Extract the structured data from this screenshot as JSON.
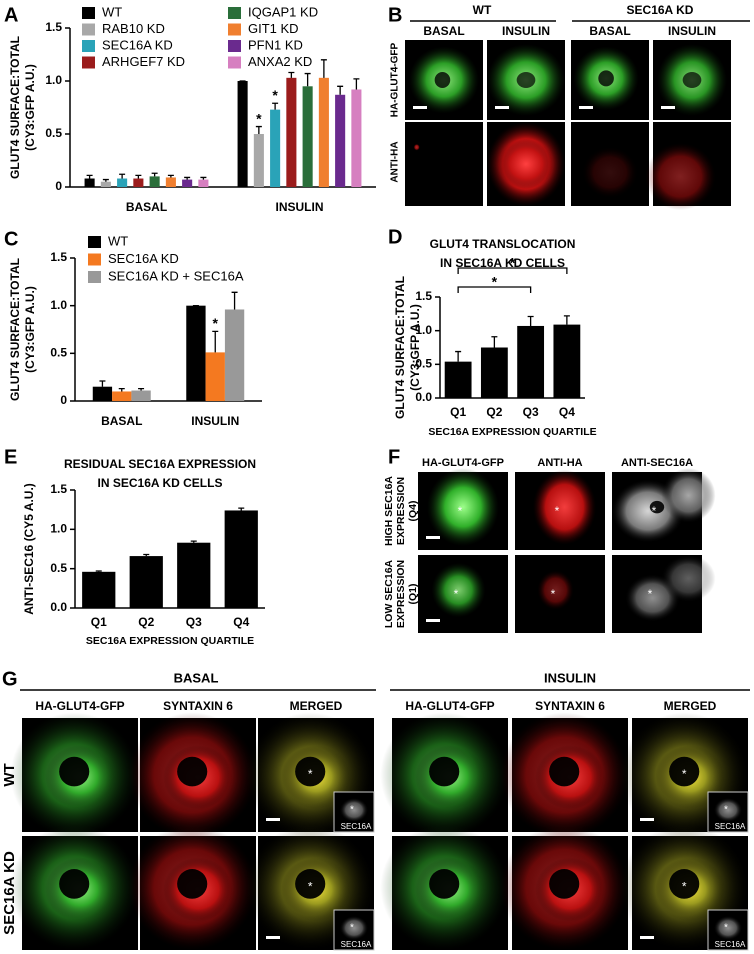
{
  "chart_data": [
    {
      "type": "bar",
      "panel": "A",
      "ylabel": [
        "GLUT4 SURFACE:TOTAL",
        "(CY3:GFP A.U.)"
      ],
      "categories": [
        "BASAL",
        "INSULIN"
      ],
      "series": [
        {
          "name": "WT",
          "color": "#000000",
          "values": [
            0.08,
            1.0
          ],
          "errors": [
            0.03,
            0
          ]
        },
        {
          "name": "RAB10 KD",
          "color": "#a8a8a8",
          "values": [
            0.05,
            0.5
          ],
          "errors": [
            0.02,
            0.07
          ]
        },
        {
          "name": "SEC16A KD",
          "color": "#2aa3b8",
          "values": [
            0.08,
            0.73
          ],
          "errors": [
            0.04,
            0.06
          ]
        },
        {
          "name": "ARHGEF7 KD",
          "color": "#9b1c1c",
          "values": [
            0.08,
            1.03
          ],
          "errors": [
            0.03,
            0.05
          ]
        },
        {
          "name": "IQGAP1 KD",
          "color": "#2a6e3a",
          "values": [
            0.1,
            0.95
          ],
          "errors": [
            0.03,
            0.12
          ]
        },
        {
          "name": "GIT1 KD",
          "color": "#f07f2f",
          "values": [
            0.09,
            1.03
          ],
          "errors": [
            0.02,
            0.17
          ]
        },
        {
          "name": "PFN1 KD",
          "color": "#6a2a8e",
          "values": [
            0.07,
            0.87
          ],
          "errors": [
            0.02,
            0.08
          ]
        },
        {
          "name": "ANXA2 KD",
          "color": "#d67fc0",
          "values": [
            0.07,
            0.92
          ],
          "errors": [
            0.02,
            0.1
          ]
        }
      ],
      "annotations": [
        {
          "text": "*",
          "series": 1,
          "category": 1
        },
        {
          "text": "*",
          "series": 2,
          "category": 1
        }
      ],
      "ylim": [
        0,
        1.5
      ],
      "yticks": [
        0,
        0.5,
        {
          "value": 1,
          "label": "1.0"
        },
        1.5
      ],
      "legend": "upper left"
    },
    {
      "type": "bar",
      "panel": "C",
      "ylabel": [
        "GLUT4 SURFACE:TOTAL",
        "(CY3:GFP A.U.)"
      ],
      "categories": [
        "BASAL",
        "INSULIN"
      ],
      "series": [
        {
          "name": "WT",
          "color": "#000000",
          "values": [
            0.15,
            1.0
          ],
          "errors": [
            0.06,
            0
          ]
        },
        {
          "name": "SEC16A KD",
          "color": "#f47920",
          "values": [
            0.1,
            0.51
          ],
          "errors": [
            0.03,
            0.22
          ]
        },
        {
          "name": "SEC16A KD + SEC16A",
          "color": "#999999",
          "values": [
            0.11,
            0.96
          ],
          "errors": [
            0.02,
            0.18
          ]
        }
      ],
      "annotations": [
        {
          "text": "*",
          "series": 1,
          "category": 1
        }
      ],
      "ylim": [
        0,
        1.5
      ],
      "yticks": [
        0,
        0.5,
        {
          "value": 1,
          "label": "1.0"
        },
        1.5
      ],
      "legend": "upper left"
    },
    {
      "type": "bar",
      "panel": "D",
      "title": [
        "GLUT4 TRANSLOCATION",
        "IN SEC16A KD CELLS"
      ],
      "ylabel": [
        "GLUT4 SURFACE:TOTAL",
        "(CY3:GFP A.U.)"
      ],
      "categories": [
        "Q1",
        "Q2",
        "Q3",
        "Q4"
      ],
      "xlabel": "SEC16A EXPRESSION QUARTILE",
      "values": [
        0.54,
        0.75,
        1.07,
        1.09
      ],
      "errors": [
        0.15,
        0.16,
        0.14,
        0.13
      ],
      "color": "#000000",
      "brackets": [
        {
          "text": "*",
          "from": 0,
          "to": 2
        },
        {
          "text": "*",
          "from": 0,
          "to": 3
        }
      ],
      "ylim": [
        0,
        1.5
      ],
      "yticks": [
        {
          "value": 0,
          "label": "0.0"
        },
        0.5,
        {
          "value": 1,
          "label": "1.0"
        },
        1.5
      ]
    },
    {
      "type": "bar",
      "panel": "E",
      "title": [
        "RESIDUAL SEC16A EXPRESSION",
        "IN SEC16A KD CELLS"
      ],
      "ylabel": [
        "ANTI-SEC16 (CY5 A.U.)"
      ],
      "categories": [
        "Q1",
        "Q2",
        "Q3",
        "Q4"
      ],
      "xlabel": "SEC16A EXPRESSION QUARTILE",
      "values": [
        0.46,
        0.66,
        0.83,
        1.24
      ],
      "errors": [
        0.01,
        0.02,
        0.02,
        0.03
      ],
      "color": "#000000",
      "ylim": [
        0,
        1.5
      ],
      "yticks": [
        {
          "value": 0,
          "label": "0.0"
        },
        0.5,
        {
          "value": 1,
          "label": "1.0"
        },
        1.5
      ]
    }
  ],
  "panel_b": {
    "panel": "B",
    "groups": [
      "WT",
      "SEC16A KD"
    ],
    "columns": [
      "BASAL",
      "INSULIN"
    ],
    "rows": [
      "HA-GLUT4-GFP",
      "ANTI-HA"
    ]
  },
  "panel_f": {
    "panel": "F",
    "columns": [
      "HA-GLUT4-GFP",
      "ANTI-HA",
      "ANTI-SEC16A"
    ],
    "rows": [
      [
        "HIGH SEC16A",
        "EXPRESSION",
        "(Q4)"
      ],
      [
        "LOW SEC16A",
        "EXPRESSION",
        "(Q1)"
      ]
    ],
    "marker": "*"
  },
  "panel_g": {
    "panel": "G",
    "groups": [
      "BASAL",
      "INSULIN"
    ],
    "columns": [
      "HA-GLUT4-GFP",
      "SYNTAXIN 6",
      "MERGED"
    ],
    "rows": [
      "WT",
      "SEC16A KD"
    ],
    "inset_label": "SEC16A",
    "marker": "*"
  }
}
